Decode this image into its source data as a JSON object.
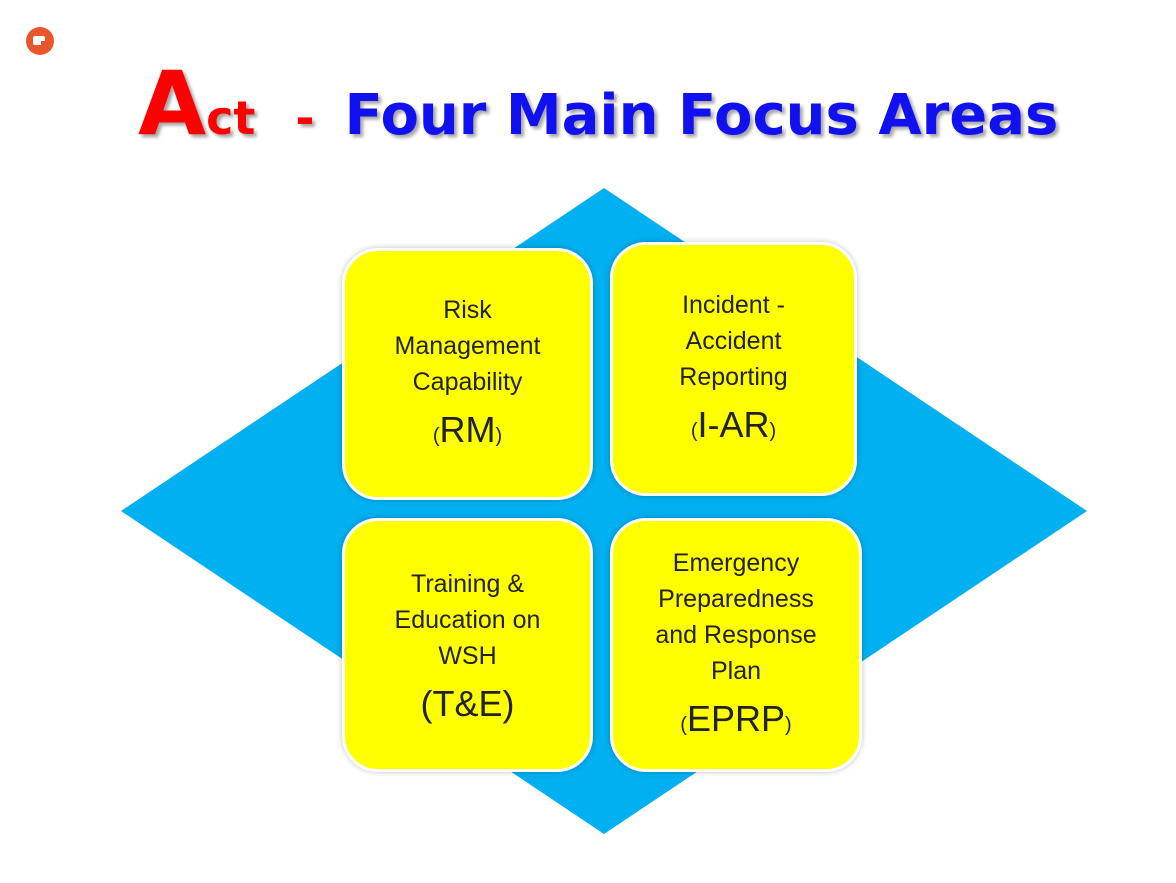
{
  "title": {
    "initial": "A",
    "rest_of_word": "ct",
    "dash": "-",
    "main": "Four Main Focus Areas"
  },
  "colors": {
    "title_red": "#ff0000",
    "title_blue": "#1010f0",
    "diamond": "#00b0f0",
    "box_fill": "#ffff00"
  },
  "areas": [
    {
      "label": "Risk Management Capability",
      "open": "(",
      "abbr": "RM",
      "close": ")"
    },
    {
      "label": "Incident - Accident Reporting",
      "open": "(",
      "abbr": "I-AR",
      "close": ")"
    },
    {
      "label": "Training & Education on WSH",
      "open": "(",
      "abbr": "T&E",
      "close": ")"
    },
    {
      "label": "Emergency Preparedness and Response Plan",
      "open": "(",
      "abbr": "EPRP",
      "close": ")"
    }
  ]
}
